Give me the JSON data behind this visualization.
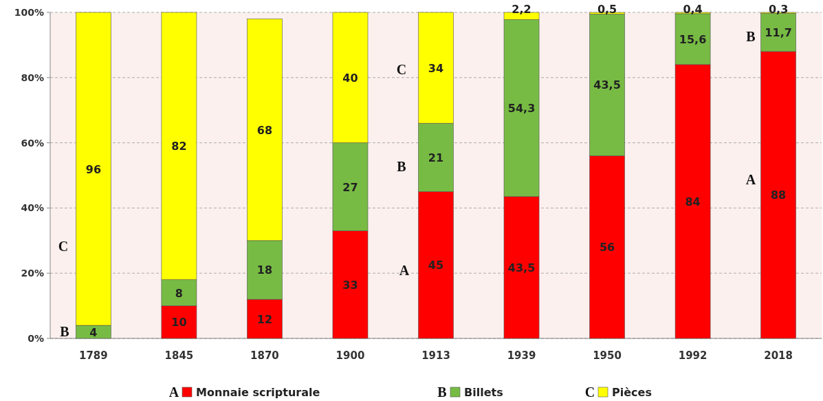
{
  "chart_data": {
    "type": "bar",
    "stacked": true,
    "categories": [
      "1789",
      "1845",
      "1870",
      "1900",
      "1913",
      "1939",
      "1950",
      "1992",
      "2018"
    ],
    "series": [
      {
        "name": "Monnaie scripturale",
        "color": "#ff0000",
        "values": [
          0,
          10,
          12,
          33,
          45,
          43.5,
          56,
          84,
          88
        ],
        "value_labels": [
          null,
          "10",
          "12",
          "33",
          "45",
          "43,5",
          "56",
          "84",
          "88"
        ]
      },
      {
        "name": "Billets",
        "color": "#77bb44",
        "values": [
          4,
          8,
          18,
          27,
          21,
          54.3,
          43.5,
          15.6,
          11.7
        ],
        "value_labels": [
          "4",
          "8",
          "18",
          "27",
          "21",
          "54,3",
          "43,5",
          "15,6",
          "11,7"
        ]
      },
      {
        "name": "Pièces",
        "color": "#ffff00",
        "values": [
          96,
          82,
          68,
          40,
          34,
          2.2,
          0.5,
          0.4,
          0.3
        ],
        "value_labels": [
          "96",
          "82",
          "68",
          "40",
          "34",
          "2,2",
          "0,5",
          "0,4",
          "0,3"
        ]
      }
    ],
    "ylim": [
      0,
      100
    ],
    "yticks": [
      {
        "value": 0,
        "label": "0%"
      },
      {
        "value": 20,
        "label": "20%"
      },
      {
        "value": 40,
        "label": "40%"
      },
      {
        "value": 60,
        "label": "60%"
      },
      {
        "value": 80,
        "label": "80%"
      },
      {
        "value": 100,
        "label": "100%"
      }
    ],
    "grid": "y",
    "legend": "bottom",
    "annotations": [
      "A",
      "B",
      "C",
      "C",
      "B",
      "C",
      "B",
      "A",
      "B",
      "A"
    ]
  }
}
